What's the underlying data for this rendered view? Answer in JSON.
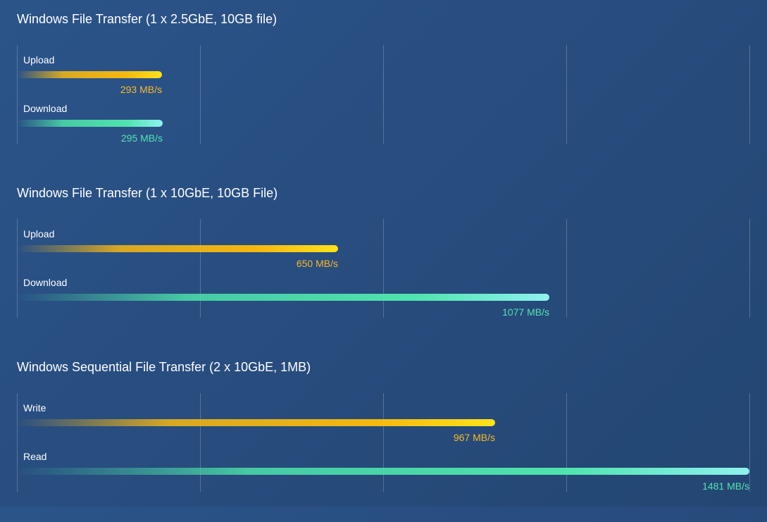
{
  "colors": {
    "background": "#284d7f",
    "upload_bar": "#f5b80f",
    "download_bar": "#50e3ad",
    "upload_text": "#f7b928",
    "download_text": "#55e2b4"
  },
  "chart_data": [
    {
      "type": "bar",
      "orientation": "horizontal",
      "title": "Windows File Transfer (1 x 2.5GbE, 10GB file)",
      "unit": "MB/s",
      "xlim": [
        0,
        1481
      ],
      "grid": true,
      "categories": [
        "Upload",
        "Download"
      ],
      "values": [
        293,
        295
      ],
      "value_labels": [
        "293 MB/s",
        "295 MB/s"
      ]
    },
    {
      "type": "bar",
      "orientation": "horizontal",
      "title": "Windows File Transfer (1 x 10GbE, 10GB File)",
      "unit": "MB/s",
      "xlim": [
        0,
        1481
      ],
      "grid": true,
      "categories": [
        "Upload",
        "Download"
      ],
      "values": [
        650,
        1077
      ],
      "value_labels": [
        "650 MB/s",
        "1077 MB/s"
      ]
    },
    {
      "type": "bar",
      "orientation": "horizontal",
      "title": "Windows Sequential File Transfer (2 x 10GbE, 1MB)",
      "unit": "MB/s",
      "xlim": [
        0,
        1481
      ],
      "grid": true,
      "categories": [
        "Write",
        "Read"
      ],
      "values": [
        967,
        1481
      ],
      "value_labels": [
        "967 MB/s",
        "1481 MB/s"
      ]
    }
  ]
}
